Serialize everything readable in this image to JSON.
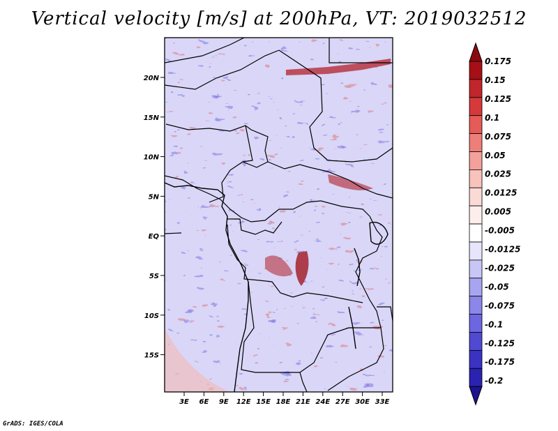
{
  "title": "Vertical velocity [m/s] at 200hPa, VT: 2019032512",
  "footer": "GrADS: IGES/COLA",
  "map": {
    "latitude_ticks": [
      "20N",
      "15N",
      "10N",
      "5N",
      "EQ",
      "5S",
      "10S",
      "15S"
    ],
    "longitude_ticks": [
      "3E",
      "6E",
      "9E",
      "12E",
      "15E",
      "18E",
      "21E",
      "24E",
      "27E",
      "30E",
      "33E"
    ]
  },
  "colorbar": {
    "levels": [
      {
        "label": "0.175",
        "color": "#a50f15"
      },
      {
        "label": "0.15",
        "color": "#c0262c"
      },
      {
        "label": "0.125",
        "color": "#d6393a"
      },
      {
        "label": "0.1",
        "color": "#e45b58"
      },
      {
        "label": "0.075",
        "color": "#ee7e79"
      },
      {
        "label": "0.05",
        "color": "#f4a19b"
      },
      {
        "label": "0.025",
        "color": "#f8c2bd"
      },
      {
        "label": "0.0125",
        "color": "#fbdad6"
      },
      {
        "label": "0.005",
        "color": "#fdeeec"
      },
      {
        "label": "-0.005",
        "color": "#ffffff"
      },
      {
        "label": "-0.0125",
        "color": "#e6e5fb"
      },
      {
        "label": "-0.025",
        "color": "#c8c6f6"
      },
      {
        "label": "-0.05",
        "color": "#a8a5f0"
      },
      {
        "label": "-0.075",
        "color": "#8a86ea"
      },
      {
        "label": "-0.1",
        "color": "#6c66e0"
      },
      {
        "label": "-0.125",
        "color": "#5049d2"
      },
      {
        "label": "-0.175",
        "color": "#3a32c0"
      },
      {
        "label": "-0.2",
        "color": "#2a22b0"
      }
    ],
    "top_color": "#8b0a10",
    "bottom_color": "#1c1490"
  }
}
